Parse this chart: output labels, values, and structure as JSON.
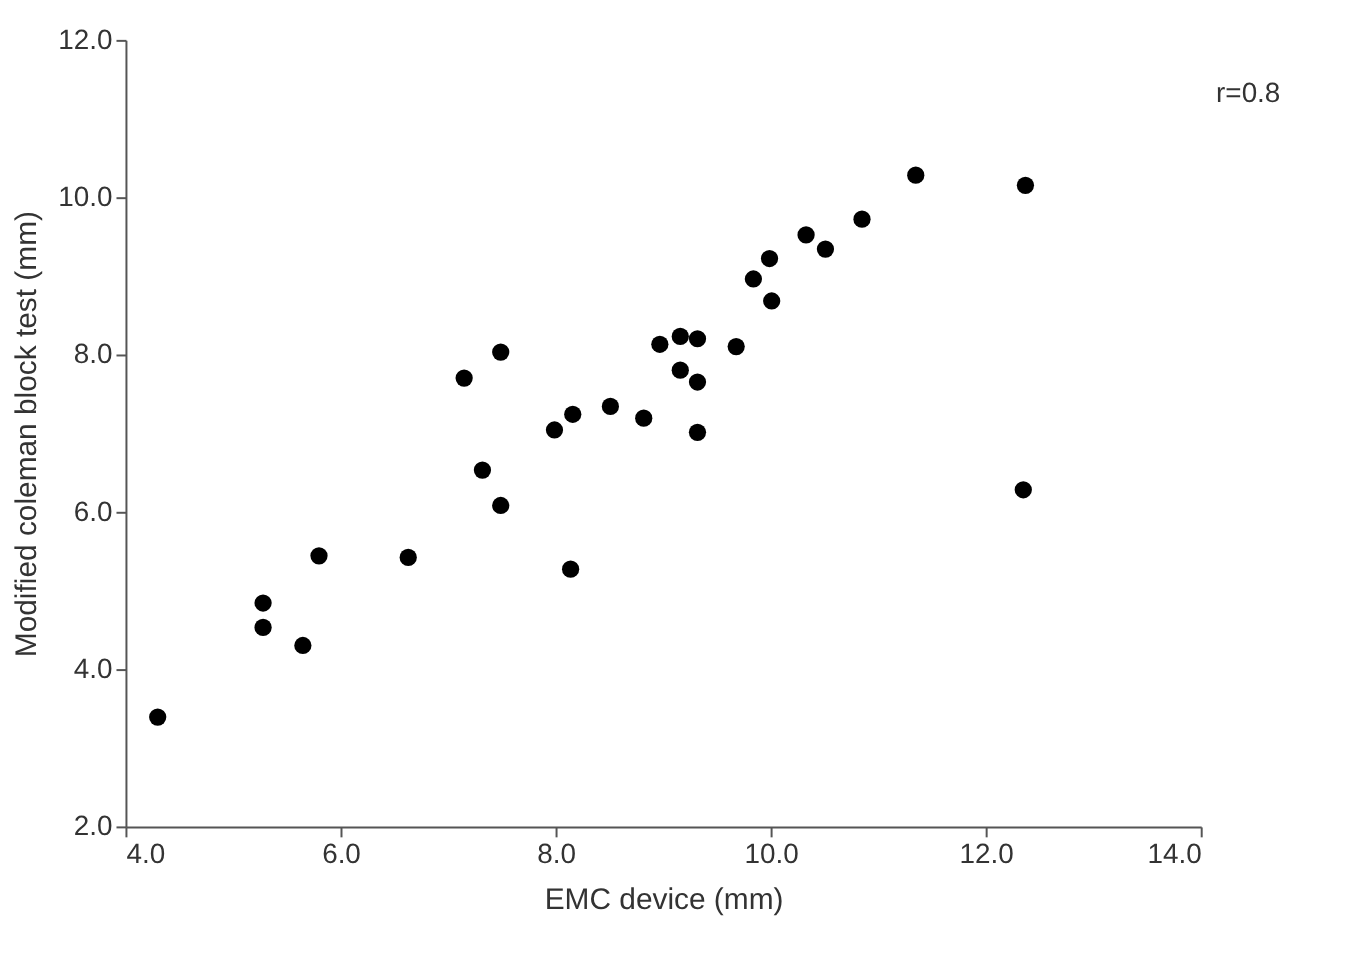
{
  "chart_data": {
    "type": "scatter",
    "xlabel": "EMC device (mm)",
    "ylabel": "Modified coleman block test (mm)",
    "annotations": [
      "r=0.8"
    ],
    "x": [
      4.3,
      5.28,
      5.28,
      5.65,
      5.8,
      6.63,
      7.15,
      7.49,
      7.32,
      7.49,
      8.14,
      7.99,
      8.16,
      8.51,
      8.82,
      8.97,
      9.16,
      9.32,
      9.16,
      9.32,
      9.32,
      9.68,
      9.84,
      9.99,
      10.01,
      10.33,
      10.51,
      10.85,
      11.35,
      12.37,
      12.35
    ],
    "series": [
      {
        "color": "#000000",
        "values": [
          3.39,
          4.84,
          4.53,
          4.3,
          5.44,
          5.42,
          7.7,
          8.03,
          6.53,
          6.08,
          5.27,
          7.04,
          7.24,
          7.34,
          7.19,
          8.13,
          8.23,
          8.2,
          7.8,
          7.65,
          7.01,
          8.1,
          8.96,
          9.22,
          8.68,
          9.52,
          9.34,
          9.72,
          10.28,
          10.15,
          6.28
        ]
      }
    ],
    "xlim": [
      4,
      14
    ],
    "ylim": [
      2,
      12
    ],
    "xticks": [
      {
        "value": 4,
        "label": "4.0"
      },
      {
        "value": 6,
        "label": "6.0"
      },
      {
        "value": 8,
        "label": "8.0"
      },
      {
        "value": 10,
        "label": "10.0"
      },
      {
        "value": 12,
        "label": "12.0"
      },
      {
        "value": 14,
        "label": "14.0"
      }
    ],
    "yticks": [
      {
        "value": 2,
        "label": "2.0"
      },
      {
        "value": 4,
        "label": "4.0"
      },
      {
        "value": 6,
        "label": "6.0"
      },
      {
        "value": 8,
        "label": "8.0"
      },
      {
        "value": 10,
        "label": "10.0"
      },
      {
        "value": 12,
        "label": "12.0"
      }
    ],
    "grid": false,
    "legend": false,
    "marker": "circle"
  }
}
